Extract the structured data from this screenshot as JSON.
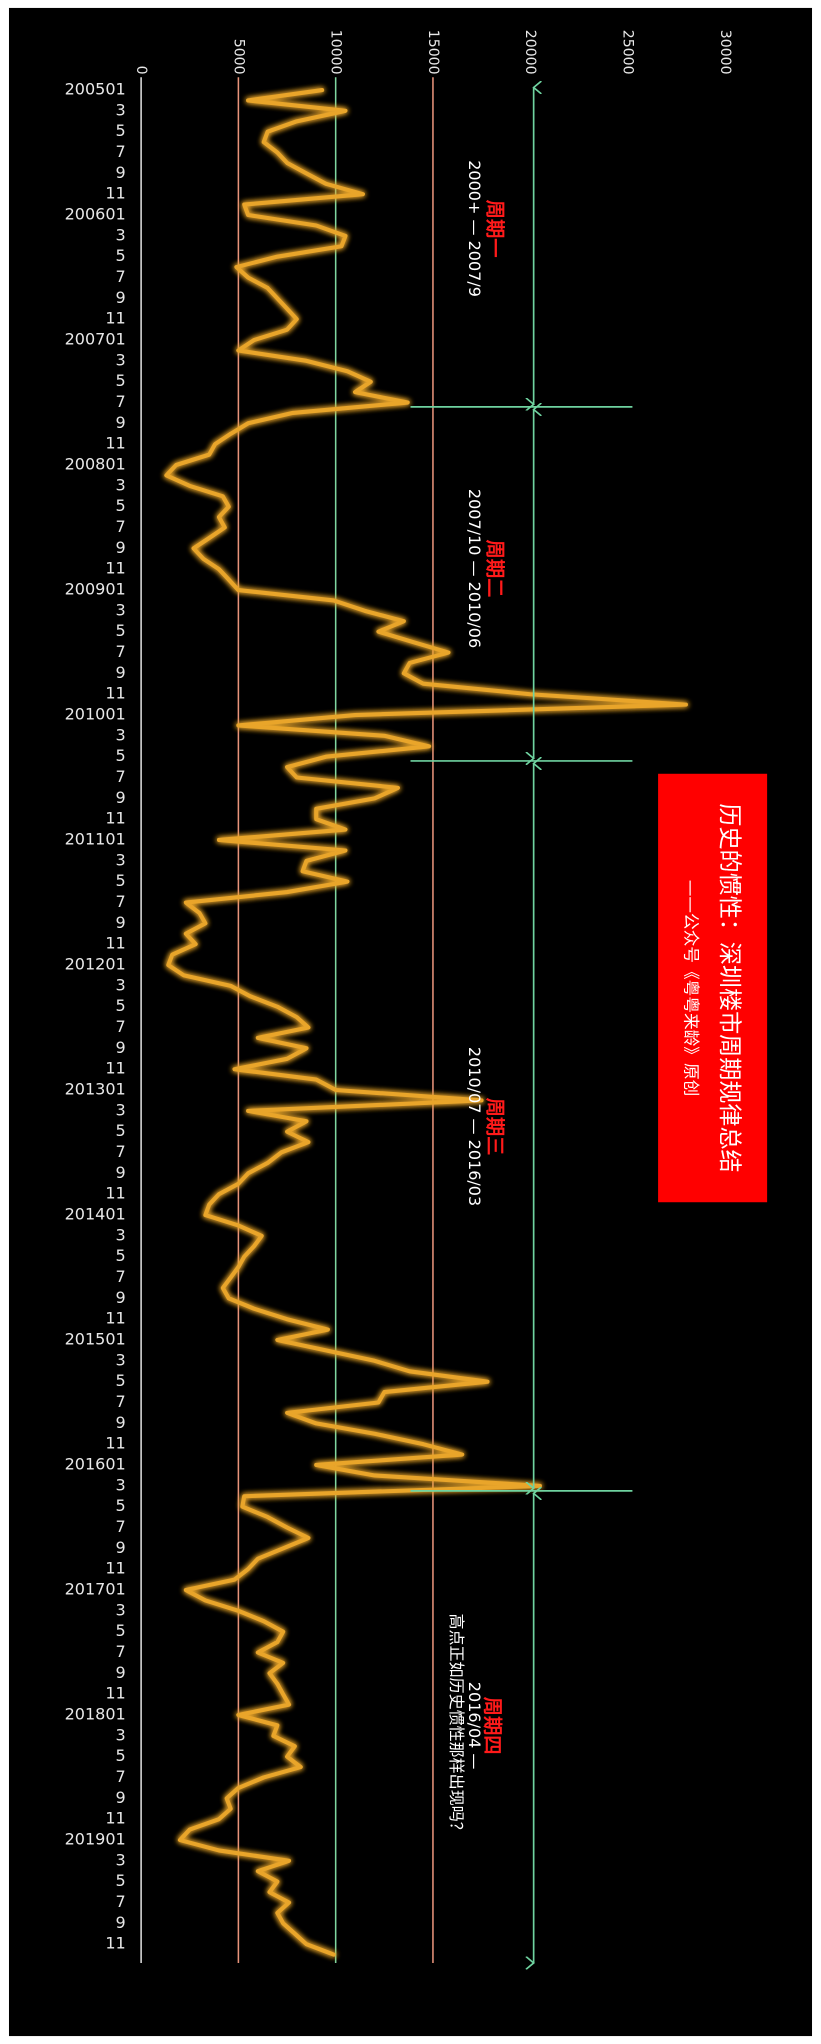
{
  "chart_data": {
    "type": "line",
    "orientation": "vertical",
    "title": "历史的惯性：深圳楼市周期规律总结",
    "subtitle": "——公众号《粤粤来龄》原创",
    "categories": [
      "200501",
      null,
      "3",
      null,
      "5",
      null,
      "7",
      null,
      "9",
      null,
      "11",
      null,
      "200601",
      null,
      "3",
      null,
      "5",
      null,
      "7",
      null,
      "9",
      null,
      "11",
      null,
      "200701",
      null,
      "3",
      null,
      "5",
      null,
      "7",
      null,
      "9",
      null,
      "11",
      null,
      "200801",
      null,
      "3",
      null,
      "5",
      null,
      "7",
      null,
      "9",
      null,
      "11",
      null,
      "200901",
      null,
      "3",
      null,
      "5",
      null,
      "7",
      null,
      "9",
      null,
      "11",
      null,
      "201001",
      null,
      "3",
      null,
      "5",
      null,
      "7",
      null,
      "9",
      null,
      "11",
      null,
      "201101",
      null,
      "3",
      null,
      "5",
      null,
      "7",
      null,
      "9",
      null,
      "11",
      null,
      "201201",
      null,
      "3",
      null,
      "5",
      null,
      "7",
      null,
      "9",
      null,
      "11",
      null,
      "201301",
      null,
      "3",
      null,
      "5",
      null,
      "7",
      null,
      "9",
      null,
      "11",
      null,
      "201401",
      null,
      "3",
      null,
      "5",
      null,
      "7",
      null,
      "9",
      null,
      "11",
      null,
      "201501",
      null,
      "3",
      null,
      "5",
      null,
      "7",
      null,
      "9",
      null,
      "11",
      null,
      "201601",
      null,
      "3",
      null,
      "5",
      null,
      "7",
      null,
      "9",
      null,
      "11",
      null,
      "201701",
      null,
      "3",
      null,
      "5",
      null,
      "7",
      null,
      "9",
      null,
      "11",
      null,
      "201801",
      null,
      "3",
      null,
      "5",
      null,
      "7",
      null,
      "9",
      null,
      "11",
      null,
      "201901",
      null,
      "3",
      null,
      "5",
      null,
      "7",
      null,
      "9",
      null,
      "11",
      null
    ],
    "values": [
      9300,
      5500,
      10500,
      8000,
      6500,
      6300,
      7000,
      7500,
      8500,
      9500,
      11400,
      5300,
      5500,
      9000,
      10500,
      10300,
      7000,
      4900,
      5500,
      6500,
      7000,
      7500,
      8000,
      7500,
      5800,
      5000,
      8500,
      10600,
      11800,
      11000,
      13700,
      7800,
      5500,
      4600,
      3800,
      3500,
      1800,
      1300,
      2500,
      4200,
      4500,
      4000,
      4300,
      3500,
      2700,
      3200,
      4000,
      4500,
      5000,
      9900,
      11500,
      13500,
      12200,
      14000,
      15800,
      13800,
      13500,
      14500,
      20000,
      28000,
      11000,
      5000,
      12500,
      14800,
      9500,
      7500,
      8000,
      13200,
      12000,
      9000,
      9000,
      10500,
      4000,
      10500,
      8500,
      8300,
      10600,
      7500,
      2300,
      3000,
      3300,
      2300,
      2800,
      1600,
      1400,
      2200,
      4600,
      5600,
      7000,
      8000,
      8600,
      6000,
      8500,
      7500,
      4800,
      9000,
      10000,
      17500,
      5500,
      8500,
      7500,
      8600,
      7200,
      6500,
      5500,
      5000,
      4000,
      3500,
      3300,
      5000,
      6200,
      5800,
      5300,
      5000,
      4600,
      4200,
      4500,
      5800,
      7500,
      9600,
      7000,
      9500,
      12000,
      13800,
      17800,
      12500,
      12200,
      7500,
      9000,
      12000,
      14500,
      16500,
      9000,
      12000,
      20500,
      5300,
      5200,
      6500,
      7500,
      8600,
      7300,
      6000,
      5500,
      4800,
      2300,
      3300,
      5000,
      6300,
      7300,
      7000,
      6000,
      7300,
      6600,
      7000,
      7300,
      7600,
      5000,
      7000,
      6800,
      7900,
      7500,
      8200,
      6300,
      5000,
      4400,
      4600,
      4000,
      2500,
      2000,
      4000,
      7600,
      6000,
      7000,
      6600,
      7600,
      7000,
      7300,
      7900,
      8500,
      9900
    ],
    "color": "#e9a52b",
    "ylim": [
      0,
      30000
    ],
    "yticks": [
      0,
      5000,
      10000,
      15000,
      20000,
      25000,
      30000
    ],
    "reference_lines": [
      {
        "value": 5000,
        "color": "#e8937a"
      },
      {
        "value": 10000,
        "color": "#7fd6a0"
      },
      {
        "value": 15000,
        "color": "#e8937a"
      }
    ],
    "annotations": [
      {
        "label": "周期一",
        "text": "2000+ — 2007/9"
      },
      {
        "label": "周期二",
        "text": "2007/10 — 2010/06"
      },
      {
        "label": "周期三",
        "text": "2010/07 — 2016/03"
      },
      {
        "label": "周期四",
        "text": "2016/04 —",
        "note": "高点正如历史惯性那样出现吗？"
      }
    ]
  }
}
